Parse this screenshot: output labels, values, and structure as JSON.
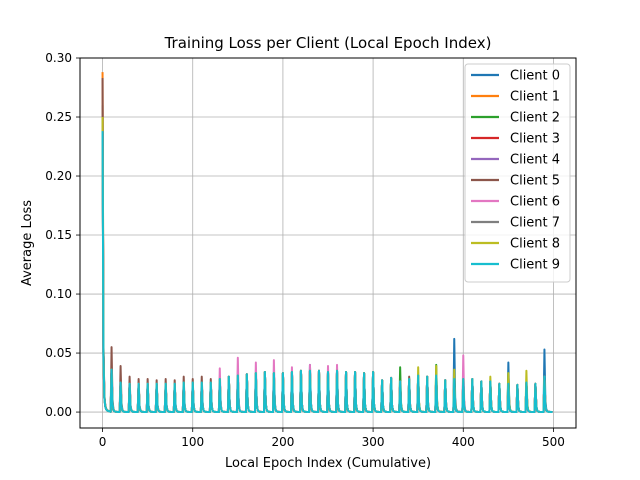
{
  "chart_data": {
    "type": "line",
    "title": "Training Loss per Client (Local Epoch Index)",
    "xlabel": "Local Epoch Index (Cumulative)",
    "ylabel": "Average Loss",
    "xlim": [
      -25,
      525
    ],
    "ylim": [
      -0.0135,
      0.3
    ],
    "xticks": [
      0,
      100,
      200,
      300,
      400,
      500
    ],
    "xtick_labels": [
      "0",
      "100",
      "200",
      "300",
      "400",
      "500"
    ],
    "yticks": [
      0.0,
      0.05,
      0.1,
      0.15,
      0.2,
      0.25,
      0.3
    ],
    "ytick_labels": [
      "0.00",
      "0.05",
      "0.10",
      "0.15",
      "0.20",
      "0.25",
      "0.30"
    ],
    "grid": true,
    "legend_position": "upper right",
    "epochs_per_round": 10,
    "num_rounds": 50,
    "round_start_x": [
      0,
      10,
      20,
      30,
      40,
      50,
      60,
      70,
      80,
      90,
      100,
      110,
      120,
      130,
      140,
      150,
      160,
      170,
      180,
      190,
      200,
      210,
      220,
      230,
      240,
      250,
      260,
      270,
      280,
      290,
      300,
      310,
      320,
      330,
      340,
      350,
      360,
      370,
      380,
      390,
      400,
      410,
      420,
      430,
      440,
      450,
      460,
      470,
      480,
      490
    ],
    "series": [
      {
        "name": "Client 0",
        "color": "#1f77b4",
        "peaks": [
          0.26,
          0.036,
          0.025,
          0.024,
          0.024,
          0.024,
          0.024,
          0.024,
          0.024,
          0.025,
          0.025,
          0.025,
          0.025,
          0.028,
          0.03,
          0.031,
          0.032,
          0.033,
          0.034,
          0.033,
          0.033,
          0.034,
          0.035,
          0.04,
          0.035,
          0.034,
          0.035,
          0.034,
          0.034,
          0.033,
          0.034,
          0.027,
          0.029,
          0.026,
          0.028,
          0.031,
          0.03,
          0.031,
          0.027,
          0.062,
          0.028,
          0.028,
          0.026,
          0.026,
          0.024,
          0.042,
          0.023,
          0.025,
          0.024,
          0.053
        ]
      },
      {
        "name": "Client 1",
        "color": "#ff7f0e",
        "peaks": [
          0.288,
          0.036,
          0.025,
          0.024,
          0.024,
          0.024,
          0.024,
          0.024,
          0.024,
          0.025,
          0.025,
          0.025,
          0.025,
          0.028,
          0.03,
          0.031,
          0.032,
          0.033,
          0.034,
          0.033,
          0.033,
          0.034,
          0.035,
          0.035,
          0.035,
          0.034,
          0.035,
          0.034,
          0.034,
          0.033,
          0.034,
          0.027,
          0.029,
          0.026,
          0.028,
          0.031,
          0.03,
          0.031,
          0.027,
          0.028,
          0.028,
          0.028,
          0.026,
          0.026,
          0.024,
          0.024,
          0.023,
          0.025,
          0.024,
          0.03
        ]
      },
      {
        "name": "Client 2",
        "color": "#2ca02c",
        "peaks": [
          0.25,
          0.036,
          0.025,
          0.024,
          0.024,
          0.024,
          0.024,
          0.024,
          0.024,
          0.025,
          0.025,
          0.025,
          0.025,
          0.028,
          0.03,
          0.031,
          0.032,
          0.033,
          0.034,
          0.033,
          0.033,
          0.034,
          0.035,
          0.035,
          0.035,
          0.034,
          0.035,
          0.034,
          0.034,
          0.033,
          0.034,
          0.027,
          0.029,
          0.038,
          0.028,
          0.031,
          0.03,
          0.04,
          0.027,
          0.028,
          0.028,
          0.028,
          0.026,
          0.026,
          0.024,
          0.033,
          0.023,
          0.025,
          0.024,
          0.03
        ]
      },
      {
        "name": "Client 3",
        "color": "#d62728",
        "peaks": [
          0.25,
          0.036,
          0.025,
          0.024,
          0.024,
          0.024,
          0.024,
          0.024,
          0.024,
          0.025,
          0.025,
          0.025,
          0.025,
          0.028,
          0.03,
          0.031,
          0.032,
          0.033,
          0.034,
          0.033,
          0.033,
          0.034,
          0.035,
          0.035,
          0.035,
          0.034,
          0.035,
          0.034,
          0.034,
          0.033,
          0.034,
          0.027,
          0.029,
          0.026,
          0.028,
          0.031,
          0.03,
          0.031,
          0.027,
          0.028,
          0.028,
          0.028,
          0.026,
          0.026,
          0.024,
          0.024,
          0.023,
          0.025,
          0.024,
          0.03
        ]
      },
      {
        "name": "Client 4",
        "color": "#9467bd",
        "peaks": [
          0.25,
          0.036,
          0.025,
          0.024,
          0.024,
          0.024,
          0.024,
          0.024,
          0.024,
          0.025,
          0.025,
          0.025,
          0.025,
          0.028,
          0.03,
          0.031,
          0.032,
          0.033,
          0.034,
          0.033,
          0.033,
          0.034,
          0.035,
          0.035,
          0.035,
          0.034,
          0.035,
          0.034,
          0.034,
          0.033,
          0.034,
          0.027,
          0.029,
          0.026,
          0.028,
          0.031,
          0.03,
          0.031,
          0.027,
          0.028,
          0.028,
          0.028,
          0.026,
          0.026,
          0.024,
          0.024,
          0.023,
          0.025,
          0.024,
          0.03
        ]
      },
      {
        "name": "Client 5",
        "color": "#8c564b",
        "peaks": [
          0.283,
          0.055,
          0.039,
          0.03,
          0.028,
          0.028,
          0.027,
          0.028,
          0.027,
          0.03,
          0.028,
          0.03,
          0.028,
          0.028,
          0.03,
          0.031,
          0.032,
          0.033,
          0.034,
          0.033,
          0.033,
          0.034,
          0.035,
          0.035,
          0.035,
          0.034,
          0.035,
          0.034,
          0.034,
          0.033,
          0.034,
          0.027,
          0.029,
          0.026,
          0.03,
          0.031,
          0.03,
          0.031,
          0.027,
          0.028,
          0.034,
          0.028,
          0.026,
          0.026,
          0.024,
          0.024,
          0.023,
          0.025,
          0.024,
          0.03
        ]
      },
      {
        "name": "Client 6",
        "color": "#e377c2",
        "peaks": [
          0.25,
          0.036,
          0.025,
          0.024,
          0.024,
          0.024,
          0.024,
          0.024,
          0.024,
          0.025,
          0.025,
          0.025,
          0.025,
          0.037,
          0.03,
          0.046,
          0.032,
          0.042,
          0.034,
          0.044,
          0.033,
          0.038,
          0.035,
          0.04,
          0.035,
          0.039,
          0.04,
          0.034,
          0.034,
          0.033,
          0.034,
          0.027,
          0.029,
          0.026,
          0.028,
          0.031,
          0.03,
          0.031,
          0.027,
          0.028,
          0.048,
          0.028,
          0.026,
          0.026,
          0.024,
          0.024,
          0.023,
          0.025,
          0.024,
          0.03
        ]
      },
      {
        "name": "Client 7",
        "color": "#7f7f7f",
        "peaks": [
          0.25,
          0.036,
          0.025,
          0.024,
          0.024,
          0.024,
          0.024,
          0.024,
          0.024,
          0.025,
          0.025,
          0.025,
          0.025,
          0.028,
          0.03,
          0.031,
          0.032,
          0.033,
          0.034,
          0.033,
          0.033,
          0.034,
          0.035,
          0.035,
          0.035,
          0.034,
          0.035,
          0.034,
          0.034,
          0.033,
          0.034,
          0.027,
          0.029,
          0.026,
          0.028,
          0.031,
          0.03,
          0.031,
          0.027,
          0.028,
          0.028,
          0.028,
          0.026,
          0.026,
          0.024,
          0.024,
          0.023,
          0.025,
          0.024,
          0.03
        ]
      },
      {
        "name": "Client 8",
        "color": "#bcbd22",
        "peaks": [
          0.25,
          0.036,
          0.025,
          0.024,
          0.024,
          0.024,
          0.024,
          0.024,
          0.024,
          0.025,
          0.025,
          0.025,
          0.025,
          0.028,
          0.03,
          0.031,
          0.032,
          0.033,
          0.034,
          0.033,
          0.033,
          0.034,
          0.035,
          0.035,
          0.035,
          0.034,
          0.035,
          0.034,
          0.034,
          0.033,
          0.034,
          0.027,
          0.029,
          0.026,
          0.028,
          0.038,
          0.03,
          0.039,
          0.027,
          0.036,
          0.028,
          0.028,
          0.026,
          0.03,
          0.024,
          0.033,
          0.023,
          0.035,
          0.024,
          0.03
        ]
      },
      {
        "name": "Client 9",
        "color": "#17becf",
        "peaks": [
          0.238,
          0.036,
          0.025,
          0.024,
          0.024,
          0.024,
          0.024,
          0.024,
          0.024,
          0.025,
          0.025,
          0.025,
          0.025,
          0.028,
          0.03,
          0.031,
          0.032,
          0.033,
          0.034,
          0.033,
          0.033,
          0.034,
          0.035,
          0.035,
          0.035,
          0.034,
          0.035,
          0.034,
          0.034,
          0.033,
          0.034,
          0.027,
          0.029,
          0.026,
          0.028,
          0.031,
          0.03,
          0.031,
          0.027,
          0.028,
          0.028,
          0.028,
          0.026,
          0.026,
          0.024,
          0.024,
          0.023,
          0.025,
          0.024,
          0.03
        ]
      }
    ]
  }
}
